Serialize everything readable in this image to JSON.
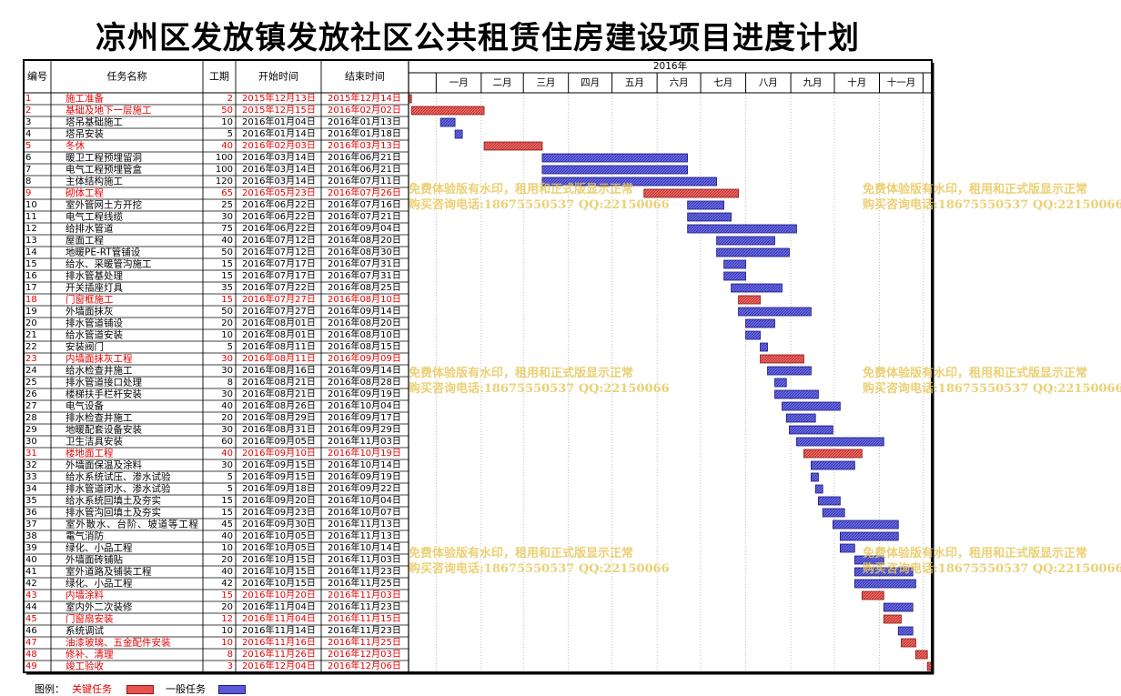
{
  "title": "凉州区发放镇发放社区公共租赁住房建设项目进度计划",
  "colors": {
    "key": "#e8534f",
    "normal": "#5b5bd6",
    "key_text": "#e40000",
    "normal_text": "#000000"
  },
  "legend": {
    "label": "图例：",
    "key": "关键任务",
    "normal": "一般任务"
  },
  "watermark": {
    "line1": "免费体验版有水印，租用和正式版显示正常",
    "line2": "购买咨询电话:18675550537 QQ:22150066"
  },
  "chart_data": {
    "type": "gantt",
    "title": "凉州区发放镇发放社区公共租赁住房建设项目进度计划",
    "headers": [
      "编号",
      "任务名称",
      "工期",
      "开始时间",
      "结束时间"
    ],
    "year_label": "2016年",
    "months": [
      "一月",
      "二月",
      "三月",
      "四月",
      "五月",
      "六月",
      "七月",
      "八月",
      "九月",
      "十月",
      "十一月"
    ],
    "x_range": [
      "2015-12-13",
      "2016-12-06"
    ],
    "tasks": [
      {
        "id": "1",
        "name": "施工准备",
        "duration": 2,
        "start": "2015年12月13日",
        "end": "2015年12月14日",
        "key": true
      },
      {
        "id": "2",
        "name": "基础及地下一层施工",
        "duration": 50,
        "start": "2015年12月15日",
        "end": "2016年02月02日",
        "key": true
      },
      {
        "id": "3",
        "name": "塔吊基础施工",
        "duration": 10,
        "start": "2016年01月04日",
        "end": "2016年01月13日",
        "key": false
      },
      {
        "id": "4",
        "name": "塔吊安装",
        "duration": 5,
        "start": "2016年01月14日",
        "end": "2016年01月18日",
        "key": false
      },
      {
        "id": "5",
        "name": "冬休",
        "duration": 40,
        "start": "2016年02月03日",
        "end": "2016年03月13日",
        "key": true
      },
      {
        "id": "6",
        "name": "暖卫工程预埋留洞",
        "duration": 100,
        "start": "2016年03月14日",
        "end": "2016年06月21日",
        "key": false
      },
      {
        "id": "7",
        "name": "电气工程预埋管盒",
        "duration": 100,
        "start": "2016年03月14日",
        "end": "2016年06月21日",
        "key": false
      },
      {
        "id": "8",
        "name": "主体结构施工",
        "duration": 120,
        "start": "2016年03月14日",
        "end": "2016年07月11日",
        "key": false
      },
      {
        "id": "9",
        "name": "砌体工程",
        "duration": 65,
        "start": "2016年05月23日",
        "end": "2016年07月26日",
        "key": true
      },
      {
        "id": "10",
        "name": "室外管网土方开挖",
        "duration": 25,
        "start": "2016年06月22日",
        "end": "2016年07月16日",
        "key": false
      },
      {
        "id": "11",
        "name": "电气工程线缆",
        "duration": 30,
        "start": "2016年06月22日",
        "end": "2016年07月21日",
        "key": false
      },
      {
        "id": "12",
        "name": "给排水管道",
        "duration": 75,
        "start": "2016年06月22日",
        "end": "2016年09月04日",
        "key": false
      },
      {
        "id": "13",
        "name": "屋面工程",
        "duration": 40,
        "start": "2016年07月12日",
        "end": "2016年08月20日",
        "key": false
      },
      {
        "id": "14",
        "name": "地暖PE-RT管铺设",
        "duration": 50,
        "start": "2016年07月12日",
        "end": "2016年08月30日",
        "key": false
      },
      {
        "id": "15",
        "name": "给水、采暖管沟施工",
        "duration": 15,
        "start": "2016年07月17日",
        "end": "2016年07月31日",
        "key": false
      },
      {
        "id": "16",
        "name": "排水管基处理",
        "duration": 15,
        "start": "2016年07月17日",
        "end": "2016年07月31日",
        "key": false
      },
      {
        "id": "17",
        "name": "开关插座灯具",
        "duration": 35,
        "start": "2016年07月22日",
        "end": "2016年08月25日",
        "key": false
      },
      {
        "id": "18",
        "name": "门窗框施工",
        "duration": 15,
        "start": "2016年07月27日",
        "end": "2016年08月10日",
        "key": true
      },
      {
        "id": "19",
        "name": "外墙面抹灰",
        "duration": 50,
        "start": "2016年07月27日",
        "end": "2016年09月14日",
        "key": false
      },
      {
        "id": "20",
        "name": "排水管道铺设",
        "duration": 20,
        "start": "2016年08月01日",
        "end": "2016年08月20日",
        "key": false
      },
      {
        "id": "21",
        "name": "给水管道安装",
        "duration": 10,
        "start": "2016年08月01日",
        "end": "2016年08月10日",
        "key": false
      },
      {
        "id": "22",
        "name": "安装阀门",
        "duration": 5,
        "start": "2016年08月11日",
        "end": "2016年08月15日",
        "key": false
      },
      {
        "id": "23",
        "name": "内墙面抹灰工程",
        "duration": 30,
        "start": "2016年08月11日",
        "end": "2016年09月09日",
        "key": true
      },
      {
        "id": "24",
        "name": "给水检查井施工",
        "duration": 30,
        "start": "2016年08月16日",
        "end": "2016年09月14日",
        "key": false
      },
      {
        "id": "25",
        "name": "排水管道接口处理",
        "duration": 8,
        "start": "2016年08月21日",
        "end": "2016年08月28日",
        "key": false
      },
      {
        "id": "26",
        "name": "楼梯扶手栏杆安装",
        "duration": 30,
        "start": "2016年08月21日",
        "end": "2016年09月19日",
        "key": false
      },
      {
        "id": "27",
        "name": "电气设备",
        "duration": 40,
        "start": "2016年08月26日",
        "end": "2016年10月04日",
        "key": false
      },
      {
        "id": "28",
        "name": "排水检查井施工",
        "duration": 20,
        "start": "2016年08月29日",
        "end": "2016年09月17日",
        "key": false
      },
      {
        "id": "29",
        "name": "地暖配套设备安装",
        "duration": 30,
        "start": "2016年08月31日",
        "end": "2016年09月29日",
        "key": false
      },
      {
        "id": "30",
        "name": "卫生洁具安装",
        "duration": 60,
        "start": "2016年09月05日",
        "end": "2016年11月03日",
        "key": false
      },
      {
        "id": "31",
        "name": "楼地面工程",
        "duration": 40,
        "start": "2016年09月10日",
        "end": "2016年10月19日",
        "key": true
      },
      {
        "id": "32",
        "name": "外墙面保温及涂料",
        "duration": 30,
        "start": "2016年09月15日",
        "end": "2016年10月14日",
        "key": false
      },
      {
        "id": "33",
        "name": "给水系统试压、渗水试验",
        "duration": 5,
        "start": "2016年09月15日",
        "end": "2016年09月19日",
        "key": false
      },
      {
        "id": "34",
        "name": "排水管道闭水、渗水试验",
        "duration": 5,
        "start": "2016年09月18日",
        "end": "2016年09月22日",
        "key": false
      },
      {
        "id": "35",
        "name": "给水系统回填土及夯实",
        "duration": 15,
        "start": "2016年09月20日",
        "end": "2016年10月04日",
        "key": false
      },
      {
        "id": "36",
        "name": "排水管沟回填土及夯实",
        "duration": 15,
        "start": "2016年09月23日",
        "end": "2016年10月07日",
        "key": false
      },
      {
        "id": "37",
        "name": "室外散水、台阶、坡道等工程",
        "duration": 45,
        "start": "2016年09月30日",
        "end": "2016年11月13日",
        "key": false
      },
      {
        "id": "38",
        "name": "電气消防",
        "duration": 40,
        "start": "2016年10月05日",
        "end": "2016年11月13日",
        "key": false
      },
      {
        "id": "39",
        "name": "绿化、小品工程",
        "duration": 10,
        "start": "2016年10月05日",
        "end": "2016年10月14日",
        "key": false
      },
      {
        "id": "40",
        "name": "外墙面砖铺贴",
        "duration": 20,
        "start": "2016年10月15日",
        "end": "2016年11月03日",
        "key": false
      },
      {
        "id": "41",
        "name": "室外道路及铺装工程",
        "duration": 40,
        "start": "2016年10月15日",
        "end": "2016年11月23日",
        "key": false
      },
      {
        "id": "42",
        "name": "绿化、小品工程",
        "duration": 42,
        "start": "2016年10月15日",
        "end": "2016年11月25日",
        "key": false
      },
      {
        "id": "43",
        "name": "内墙涂料",
        "duration": 15,
        "start": "2016年10月20日",
        "end": "2016年11月03日",
        "key": true
      },
      {
        "id": "44",
        "name": "室内外二次装修",
        "duration": 20,
        "start": "2016年11月04日",
        "end": "2016年11月23日",
        "key": false
      },
      {
        "id": "45",
        "name": "门窗扇安装",
        "duration": 12,
        "start": "2016年11月04日",
        "end": "2016年11月15日",
        "key": true
      },
      {
        "id": "46",
        "name": "系统调试",
        "duration": 10,
        "start": "2016年11月14日",
        "end": "2016年11月23日",
        "key": false
      },
      {
        "id": "47",
        "name": "油漆玻璃、五金配件安装",
        "duration": 10,
        "start": "2016年11月16日",
        "end": "2016年11月25日",
        "key": true
      },
      {
        "id": "48",
        "name": "修补、清理",
        "duration": 8,
        "start": "2016年11月26日",
        "end": "2016年12月03日",
        "key": true
      },
      {
        "id": "49",
        "name": "竣工验收",
        "duration": 3,
        "start": "2016年12月04日",
        "end": "2016年12月06日",
        "key": true
      }
    ]
  }
}
